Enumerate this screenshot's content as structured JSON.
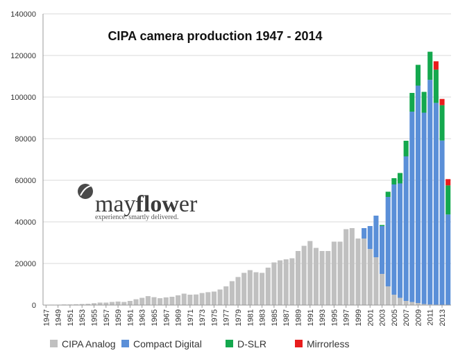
{
  "logo": {
    "name_part1": "may",
    "name_part2": "flow",
    "name_part3": "er",
    "tagline": "experience. smartly delivered."
  },
  "chart_data": {
    "type": "bar",
    "stacked": true,
    "title": "CIPA  camera production 1947 - 2014",
    "xlabel": "",
    "ylabel": "",
    "ylim": [
      0,
      140000
    ],
    "yticks": [
      0,
      20000,
      40000,
      60000,
      80000,
      100000,
      120000,
      140000
    ],
    "ytick_labels": [
      "0",
      "20000",
      "40000",
      "60000",
      "80000",
      "100000",
      "120000",
      "140000"
    ],
    "grid": true,
    "legend_position": "bottom",
    "categories": [
      1947,
      1948,
      1949,
      1950,
      1951,
      1952,
      1953,
      1954,
      1955,
      1956,
      1957,
      1958,
      1959,
      1960,
      1961,
      1962,
      1963,
      1964,
      1965,
      1966,
      1967,
      1968,
      1969,
      1970,
      1971,
      1972,
      1973,
      1974,
      1975,
      1976,
      1977,
      1978,
      1979,
      1980,
      1981,
      1982,
      1983,
      1984,
      1985,
      1986,
      1987,
      1988,
      1989,
      1990,
      1991,
      1992,
      1993,
      1994,
      1995,
      1996,
      1997,
      1998,
      1999,
      2000,
      2001,
      2002,
      2003,
      2004,
      2005,
      2006,
      2007,
      2008,
      2009,
      2010,
      2011,
      2012,
      2013,
      2014
    ],
    "xtick_labels": [
      "1947",
      "1949",
      "1951",
      "1953",
      "1955",
      "1957",
      "1959",
      "1961",
      "1963",
      "1965",
      "1967",
      "1969",
      "1971",
      "1973",
      "1975",
      "1977",
      "1979",
      "1981",
      "1983",
      "1985",
      "1987",
      "1989",
      "1991",
      "1993",
      "1995",
      "1997",
      "1999",
      "2001",
      "2003",
      "2005",
      "2007",
      "2009",
      "2011",
      "2013"
    ],
    "series": [
      {
        "name": "CIPA Analog",
        "color": "#c0c0c0",
        "values": [
          100,
          200,
          200,
          300,
          300,
          400,
          500,
          600,
          900,
          1200,
          1200,
          1500,
          1700,
          1500,
          2000,
          2800,
          3500,
          4300,
          3800,
          3300,
          3700,
          4000,
          4700,
          5500,
          5000,
          5100,
          5800,
          6200,
          6500,
          7500,
          9000,
          11500,
          13500,
          15500,
          16800,
          15800,
          15500,
          18000,
          20500,
          21500,
          22000,
          22500,
          26000,
          28500,
          30800,
          27500,
          26000,
          26000,
          30500,
          30500,
          36500,
          37000,
          32000,
          32000,
          27000,
          23000,
          15000,
          9000,
          5000,
          3500,
          2000,
          1500,
          1000,
          500,
          300,
          200,
          100,
          50
        ]
      },
      {
        "name": "Compact Digital",
        "color": "#5a8fd8",
        "values": [
          0,
          0,
          0,
          0,
          0,
          0,
          0,
          0,
          0,
          0,
          0,
          0,
          0,
          0,
          0,
          0,
          0,
          0,
          0,
          0,
          0,
          0,
          0,
          0,
          0,
          0,
          0,
          0,
          0,
          0,
          0,
          0,
          0,
          0,
          0,
          0,
          0,
          0,
          0,
          0,
          0,
          0,
          0,
          0,
          0,
          0,
          0,
          0,
          0,
          0,
          0,
          0,
          0,
          5000,
          11000,
          20000,
          23000,
          43000,
          53000,
          55000,
          69500,
          91500,
          104500,
          92000,
          108000,
          97000,
          79000,
          43500
        ]
      },
      {
        "name": "D-SLR",
        "color": "#14a84e",
        "values": [
          0,
          0,
          0,
          0,
          0,
          0,
          0,
          0,
          0,
          0,
          0,
          0,
          0,
          0,
          0,
          0,
          0,
          0,
          0,
          0,
          0,
          0,
          0,
          0,
          0,
          0,
          0,
          0,
          0,
          0,
          0,
          0,
          0,
          0,
          0,
          0,
          0,
          0,
          0,
          0,
          0,
          0,
          0,
          0,
          0,
          0,
          0,
          0,
          0,
          0,
          0,
          0,
          0,
          0,
          0,
          0,
          500,
          2500,
          3000,
          5000,
          7500,
          9000,
          10000,
          10000,
          13500,
          16000,
          17000,
          14000
        ]
      },
      {
        "name": "Mirrorless",
        "color": "#e81c1c",
        "values": [
          0,
          0,
          0,
          0,
          0,
          0,
          0,
          0,
          0,
          0,
          0,
          0,
          0,
          0,
          0,
          0,
          0,
          0,
          0,
          0,
          0,
          0,
          0,
          0,
          0,
          0,
          0,
          0,
          0,
          0,
          0,
          0,
          0,
          0,
          0,
          0,
          0,
          0,
          0,
          0,
          0,
          0,
          0,
          0,
          0,
          0,
          0,
          0,
          0,
          0,
          0,
          0,
          0,
          0,
          0,
          0,
          0,
          0,
          0,
          0,
          0,
          0,
          0,
          0,
          0,
          4000,
          3000,
          3000
        ]
      }
    ]
  }
}
